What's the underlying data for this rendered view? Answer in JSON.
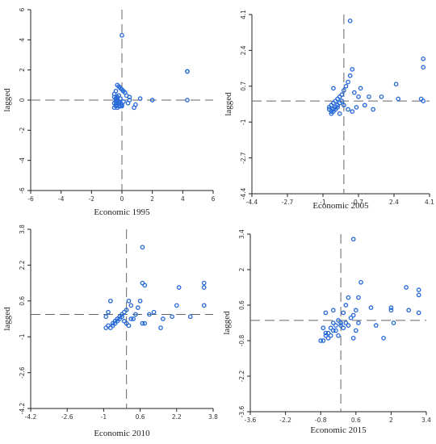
{
  "chart_data": [
    {
      "type": "scatter",
      "title": "",
      "xlabel": "Economic 1995",
      "ylabel": "lagged",
      "xlim": [
        -6,
        6
      ],
      "ylim": [
        -6,
        6
      ],
      "xticks": [
        "-6",
        "-4",
        "-2",
        "0",
        "2",
        "4",
        "6"
      ],
      "yticks": [
        "6",
        "4",
        "2",
        "0",
        "-2",
        "-4",
        "-6"
      ],
      "xtick_values": [
        -6,
        -4,
        -2,
        0,
        2,
        4,
        6
      ],
      "ytick_values": [
        6,
        4,
        2,
        0,
        -2,
        -4,
        -6
      ],
      "ref_x": 0,
      "ref_y": 0,
      "x": [
        0.0,
        4.3,
        4.3,
        4.3,
        2.0,
        1.2,
        0.9,
        0.8,
        0.5,
        0.5,
        0.4,
        0.3,
        0.2,
        0.1,
        0.0,
        -0.1,
        -0.2,
        -0.3,
        -0.4,
        -0.5,
        -0.5,
        -0.4,
        -0.3,
        -0.2,
        -0.1,
        0.0,
        -0.2,
        -0.3,
        -0.4,
        -0.5,
        -0.4,
        -0.3,
        -0.2,
        -0.1,
        0.1,
        -0.4,
        -0.3,
        -0.2,
        -0.1,
        0.0,
        -0.5,
        -0.4,
        -0.3
      ],
      "y": [
        4.3,
        1.9,
        1.9,
        0.0,
        0.0,
        0.1,
        -0.3,
        -0.5,
        0.2,
        0.0,
        -0.2,
        0.3,
        0.5,
        0.6,
        0.7,
        0.8,
        0.9,
        1.0,
        0.6,
        0.4,
        0.2,
        0.1,
        0.0,
        -0.1,
        -0.2,
        -0.3,
        -0.4,
        -0.5,
        -0.3,
        -0.2,
        0.0,
        0.2,
        0.3,
        0.1,
        -0.1,
        -0.4,
        -0.3,
        -0.2,
        -0.4,
        -0.4,
        -0.5,
        -0.1,
        0.1
      ]
    },
    {
      "type": "scatter",
      "title": "",
      "xlabel": "Economic 2005",
      "ylabel": "lagged",
      "xlim": [
        -4.4,
        4.1
      ],
      "ylim": [
        -4.4,
        4.1
      ],
      "xticks": [
        "-4.4",
        "-2.7",
        "-1",
        "0.7",
        "2.4",
        "4.1"
      ],
      "yticks": [
        "4.1",
        "2.4",
        "0.7",
        "-1",
        "-2.7",
        "-4.4"
      ],
      "xtick_values": [
        -4.4,
        -2.7,
        -1,
        0.7,
        2.4,
        4.1
      ],
      "ytick_values": [
        4.1,
        2.4,
        0.7,
        -1,
        -2.7,
        -4.4
      ],
      "ref_x": 0,
      "ref_y": 0,
      "x": [
        0.3,
        3.8,
        3.8,
        3.8,
        3.7,
        2.6,
        2.5,
        1.8,
        1.4,
        1.0,
        0.7,
        0.5,
        0.4,
        0.3,
        0.2,
        0.1,
        0.0,
        -0.1,
        -0.2,
        -0.3,
        -0.4,
        -0.5,
        -0.6,
        -0.7,
        -0.6,
        -0.5,
        -0.4,
        -0.3,
        -0.2,
        -0.1,
        0.0,
        0.2,
        0.4,
        0.6,
        -0.7,
        -0.6,
        -0.5,
        -0.4,
        -0.3,
        -0.2,
        -0.5,
        0.8,
        1.2
      ],
      "y": [
        3.8,
        2.0,
        1.6,
        0.0,
        0.1,
        0.1,
        0.8,
        0.2,
        -0.4,
        -0.2,
        0.2,
        0.4,
        1.5,
        1.2,
        0.9,
        0.7,
        0.5,
        0.3,
        0.2,
        0.1,
        0.0,
        -0.1,
        -0.2,
        -0.3,
        -0.5,
        -0.4,
        -0.3,
        -0.2,
        -0.1,
        0.0,
        -0.2,
        -0.4,
        -0.5,
        -0.3,
        -0.4,
        -0.6,
        -0.5,
        -0.4,
        -0.3,
        -0.6,
        0.6,
        0.6,
        0.2
      ]
    },
    {
      "type": "scatter",
      "title": "",
      "xlabel": "Economic 2010",
      "ylabel": "lagged",
      "xlim": [
        -4.2,
        3.8
      ],
      "ylim": [
        -4.2,
        3.8
      ],
      "xticks": [
        "-4.2",
        "-2.6",
        "-1",
        "0.6",
        "2.2",
        "3.8"
      ],
      "yticks": [
        "3.8",
        "2.2",
        "0.6",
        "-1",
        "-2.6",
        "-4.2"
      ],
      "xtick_values": [
        -4.2,
        -2.6,
        -1,
        0.6,
        2.2,
        3.8
      ],
      "ytick_values": [
        3.8,
        2.2,
        0.6,
        -1,
        -2.6,
        -4.2
      ],
      "ref_x": 0,
      "ref_y": 0,
      "x": [
        0.7,
        3.4,
        3.4,
        3.4,
        2.3,
        2.2,
        2.0,
        1.6,
        1.5,
        1.2,
        1.0,
        0.7,
        0.6,
        0.5,
        0.4,
        0.3,
        0.2,
        0.1,
        0.0,
        -0.1,
        -0.2,
        -0.3,
        -0.4,
        -0.5,
        -0.6,
        -0.7,
        -0.8,
        -0.9,
        -0.9,
        -0.8,
        -0.7,
        -0.6,
        -0.5,
        -0.4,
        -0.3,
        -0.2,
        -0.1,
        0.0,
        0.1,
        0.2,
        0.7,
        0.8,
        2.8,
        0.8
      ],
      "y": [
        3.0,
        1.4,
        1.2,
        0.4,
        1.2,
        0.4,
        -0.1,
        -0.2,
        -0.6,
        0.1,
        0.0,
        1.4,
        0.6,
        0.3,
        0.0,
        -0.2,
        0.4,
        0.6,
        0.2,
        0.1,
        0.0,
        -0.1,
        -0.2,
        -0.3,
        -0.4,
        0.6,
        0.1,
        -0.1,
        -0.6,
        -0.5,
        -0.6,
        -0.5,
        -0.4,
        -0.3,
        -0.2,
        -0.1,
        -0.3,
        -0.4,
        -0.5,
        -0.2,
        -0.4,
        1.3,
        -0.1,
        -0.4
      ]
    },
    {
      "type": "scatter",
      "title": "",
      "xlabel": "Economic 2015",
      "ylabel": "lagged",
      "xlim": [
        -3.6,
        3.4
      ],
      "ylim": [
        -3.6,
        3.4
      ],
      "xticks": [
        "-3.6",
        "-2.2",
        "-0.8",
        "0.6",
        "2",
        "3.4"
      ],
      "yticks": [
        "3.4",
        "2",
        "0.6",
        "-0.8",
        "-2.2",
        "-3.6"
      ],
      "xtick_values": [
        -3.6,
        -2.2,
        -0.8,
        0.6,
        2,
        3.4
      ],
      "ytick_values": [
        3.4,
        2,
        0.6,
        -0.8,
        -2.2,
        -3.6
      ],
      "ref_x": 0,
      "ref_y": 0,
      "x": [
        0.5,
        3.1,
        3.1,
        3.1,
        2.7,
        2.6,
        2.0,
        2.0,
        2.1,
        1.7,
        1.4,
        1.2,
        0.8,
        0.7,
        0.6,
        0.5,
        0.4,
        0.3,
        0.2,
        0.1,
        0.0,
        -0.1,
        -0.2,
        -0.3,
        -0.4,
        -0.5,
        -0.6,
        -0.7,
        -0.8,
        -0.7,
        -0.6,
        -0.5,
        -0.4,
        -0.3,
        -0.2,
        -0.1,
        0.0,
        0.1,
        0.2,
        0.3,
        0.5,
        0.6,
        0.7,
        -0.6,
        -0.3
      ],
      "y": [
        3.2,
        1.2,
        1.0,
        0.3,
        0.4,
        1.3,
        0.5,
        0.4,
        -0.1,
        -0.7,
        -0.2,
        0.5,
        1.5,
        0.9,
        0.4,
        0.2,
        0.1,
        0.9,
        0.6,
        0.3,
        -0.1,
        0.0,
        -0.2,
        -0.4,
        -0.6,
        -0.7,
        -0.5,
        -0.3,
        -0.8,
        -0.8,
        -0.6,
        -0.5,
        -0.3,
        -0.1,
        -0.4,
        -0.6,
        -0.2,
        -0.3,
        -0.1,
        -0.2,
        -0.7,
        -0.4,
        -0.1,
        0.3,
        0.4
      ]
    }
  ]
}
